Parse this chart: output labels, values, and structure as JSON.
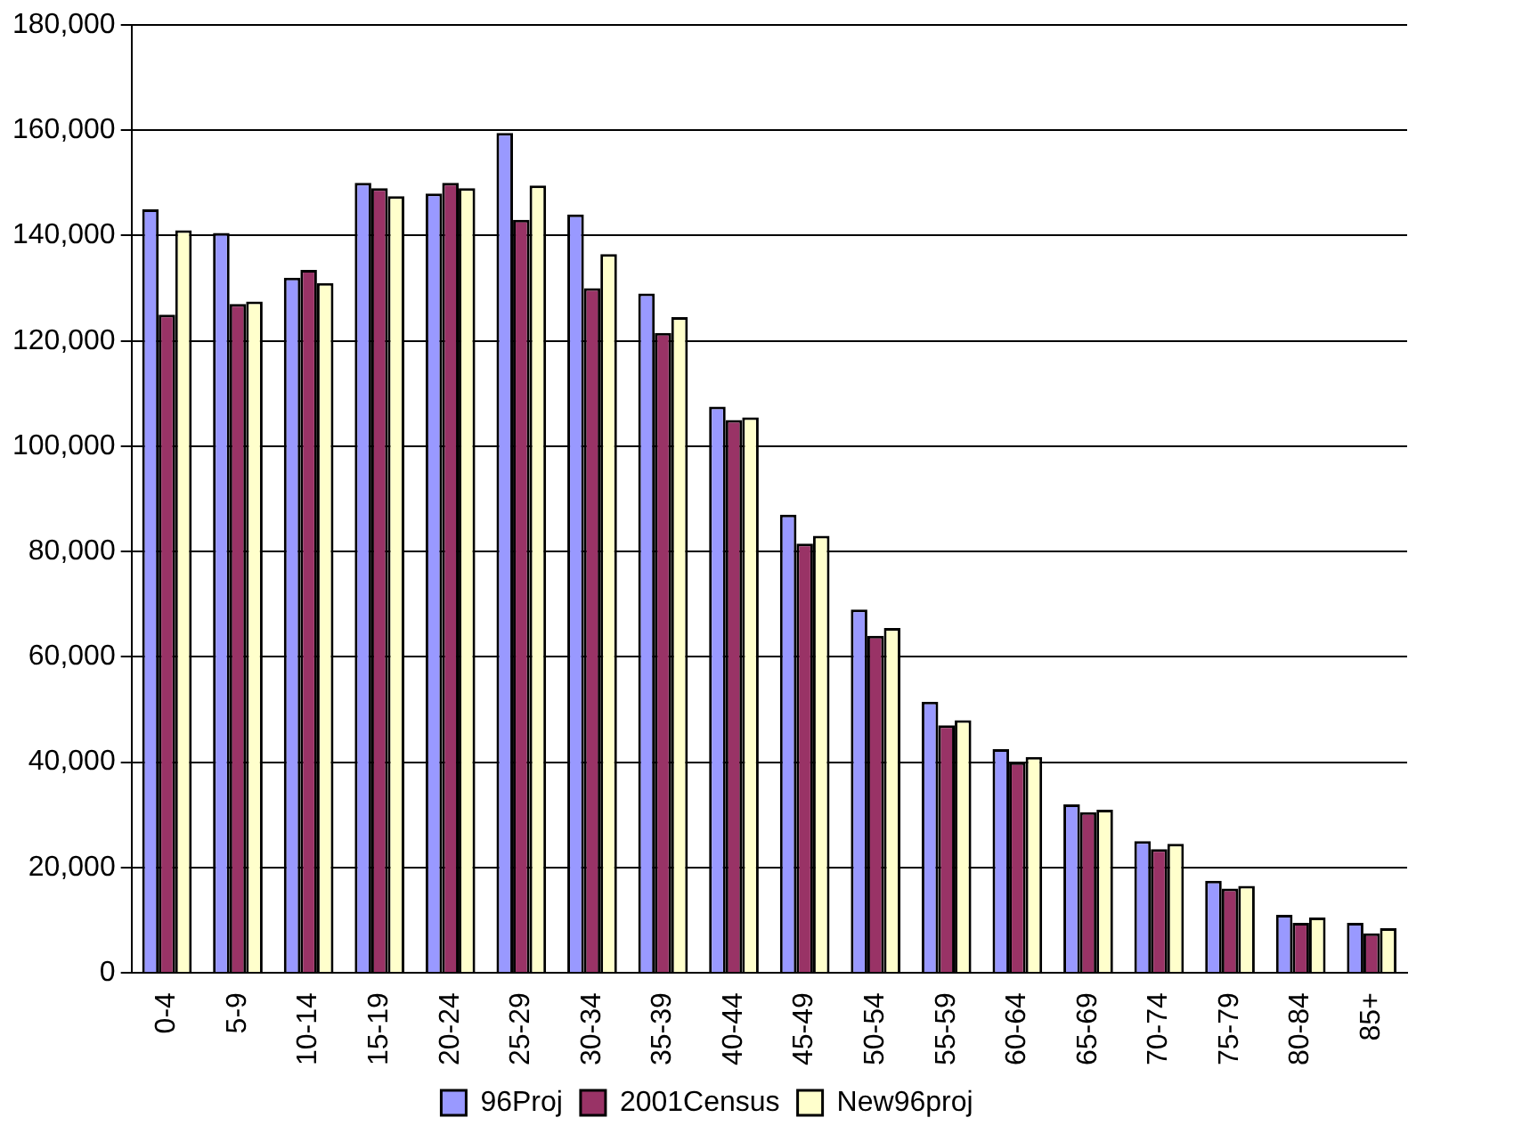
{
  "chart_data": {
    "type": "bar",
    "categories": [
      "0-4",
      "5-9",
      "10-14",
      "15-19",
      "20-24",
      "25-29",
      "30-34",
      "35-39",
      "40-44",
      "45-49",
      "50-54",
      "55-59",
      "60-64",
      "65-69",
      "70-74",
      "75-79",
      "80-84",
      "85+"
    ],
    "series": [
      {
        "name": "96Proj",
        "color": "#9999ff",
        "values": [
          145000,
          140500,
          132000,
          150000,
          148000,
          159500,
          144000,
          129000,
          107500,
          87000,
          69000,
          51500,
          42500,
          32000,
          25000,
          17500,
          11000,
          9500
        ]
      },
      {
        "name": "2001Census",
        "color": "#993366",
        "values": [
          125000,
          127000,
          133500,
          149000,
          150000,
          143000,
          130000,
          121500,
          105000,
          81500,
          64000,
          47000,
          40000,
          30500,
          23500,
          16000,
          9500,
          7500
        ]
      },
      {
        "name": "New96proj",
        "color": "#ffffcc",
        "values": [
          141000,
          127500,
          131000,
          147500,
          149000,
          149500,
          136500,
          124500,
          105500,
          83000,
          65500,
          48000,
          41000,
          31000,
          24500,
          16500,
          10500,
          8500
        ]
      }
    ],
    "ylim": [
      0,
      180000
    ],
    "yticks": [
      0,
      {
        "value": 20000,
        "label": "20,000"
      },
      {
        "value": 40000,
        "label": "40,000"
      },
      {
        "value": 60000,
        "label": "60,000"
      },
      {
        "value": 80000,
        "label": "80,000"
      },
      {
        "value": 100000,
        "label": "100,000"
      },
      {
        "value": 120000,
        "label": "120,000"
      },
      {
        "value": 140000,
        "label": "140,000"
      },
      {
        "value": 160000,
        "label": "160,000"
      },
      {
        "value": 180000,
        "label": "180,000"
      }
    ],
    "grid": "y",
    "legend": "bottom"
  }
}
